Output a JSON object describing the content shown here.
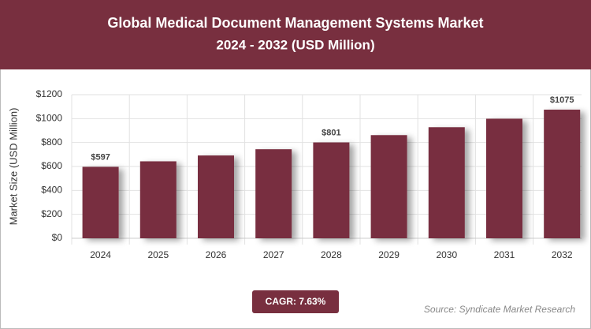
{
  "chart_data": {
    "type": "bar",
    "title": "Global Medical Document Management Systems Market",
    "subtitle": "2024 - 2032 (USD Million)",
    "y_label": "Market Size (USD Million)",
    "categories": [
      "2024",
      "2025",
      "2026",
      "2027",
      "2028",
      "2029",
      "2030",
      "2031",
      "2032"
    ],
    "values": [
      597,
      643,
      692,
      744,
      801,
      862,
      928,
      999,
      1075
    ],
    "value_labels": [
      "$597",
      null,
      null,
      null,
      "$801",
      null,
      null,
      null,
      "$1075"
    ],
    "color": "#782f3f",
    "ylim": [
      0,
      1200
    ],
    "yticks": [
      {
        "value": 0,
        "label": "$0"
      },
      {
        "value": 200,
        "label": "$200"
      },
      {
        "value": 400,
        "label": "$400"
      },
      {
        "value": 600,
        "label": "$600"
      },
      {
        "value": 800,
        "label": "$800"
      },
      {
        "value": 1000,
        "label": "$1000"
      },
      {
        "value": 1200,
        "label": "$1200"
      }
    ],
    "grid": true,
    "cagr_label": "CAGR: 7.63%",
    "source": "Source: Syndicate Market Research"
  }
}
